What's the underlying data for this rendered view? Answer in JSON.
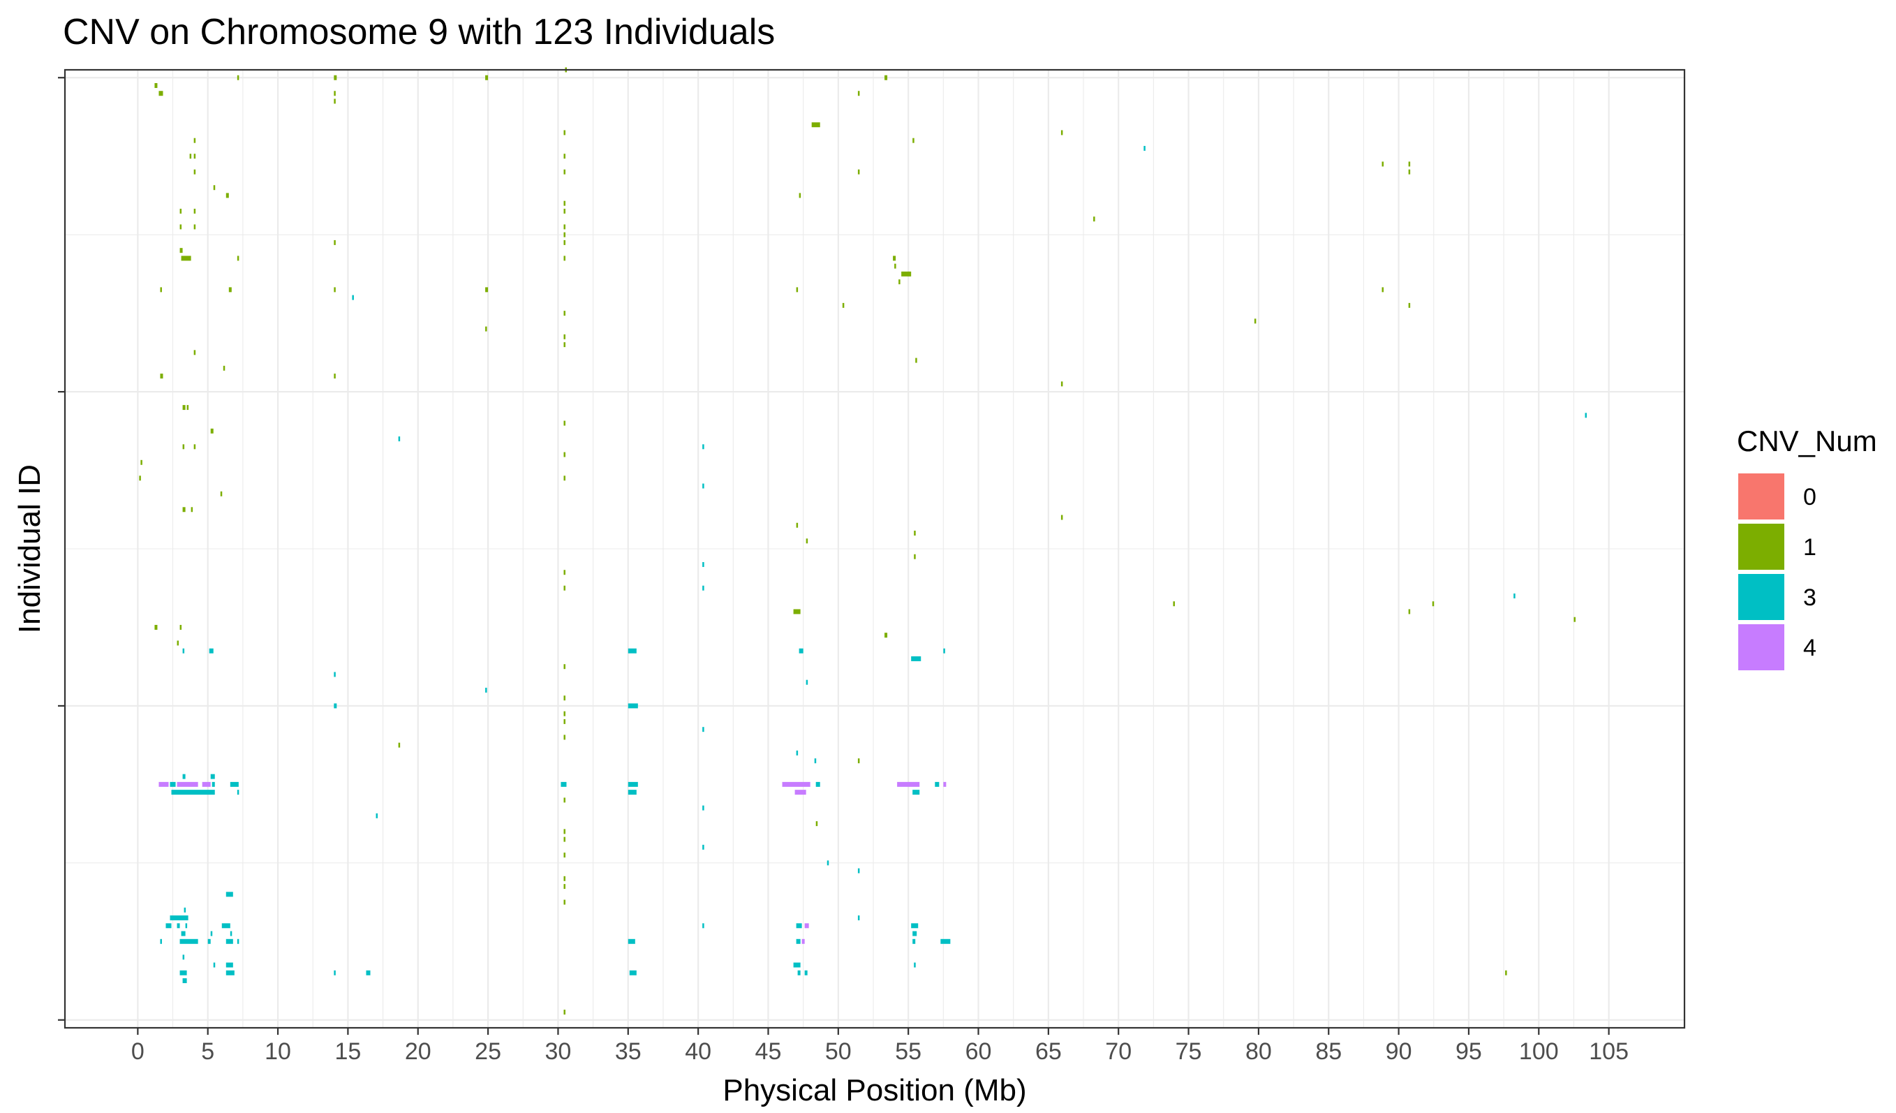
{
  "chart_data": {
    "type": "heatmap",
    "title": "CNV on Chromosome 9 with 123 Individuals",
    "xlabel": "Physical Position (Mb)",
    "ylabel": "Individual ID",
    "xlim": [
      -5.2,
      110.4
    ],
    "ylim": [
      0,
      122
    ],
    "x_ticks": [
      0,
      5,
      10,
      15,
      20,
      25,
      30,
      35,
      40,
      45,
      50,
      55,
      60,
      65,
      70,
      75,
      80,
      85,
      90,
      95,
      100,
      105
    ],
    "x_tick_labels": [
      "0",
      "5",
      "10",
      "15",
      "20",
      "25",
      "30",
      "35",
      "40",
      "45",
      "50",
      "55",
      "60",
      "65",
      "70",
      "75",
      "80",
      "85",
      "90",
      "95",
      "100",
      "105"
    ],
    "y_ticks": [
      1,
      41,
      81,
      121
    ],
    "grid": true,
    "legend": {
      "title": "CNV_Num",
      "position": "right",
      "entries": [
        {
          "label": "0",
          "color": "#F8766D"
        },
        {
          "label": "1",
          "color": "#7CAE00"
        },
        {
          "label": "3",
          "color": "#00BFC4"
        },
        {
          "label": "4",
          "color": "#C77CFF"
        }
      ]
    },
    "segments_note": "each segment: [start_Mb, end_Mb, individual_row, CNV_Num]",
    "segments": [
      [
        1.2,
        1.4,
        120,
        1
      ],
      [
        1.5,
        1.8,
        119,
        1
      ],
      [
        7.1,
        7.2,
        121,
        1
      ],
      [
        14.0,
        14.2,
        121,
        1
      ],
      [
        24.8,
        25.0,
        121,
        1
      ],
      [
        30.5,
        30.6,
        122,
        1
      ],
      [
        53.3,
        53.5,
        121,
        1
      ],
      [
        51.4,
        51.5,
        119,
        1
      ],
      [
        14.0,
        14.1,
        119,
        1
      ],
      [
        14.0,
        14.1,
        118,
        1
      ],
      [
        48.1,
        48.7,
        115,
        1
      ],
      [
        65.9,
        66.0,
        114,
        1
      ],
      [
        55.3,
        55.4,
        113,
        1
      ],
      [
        4.0,
        4.1,
        113,
        1
      ],
      [
        3.7,
        3.8,
        111,
        1
      ],
      [
        4.0,
        4.1,
        111,
        1
      ],
      [
        4.0,
        4.1,
        109,
        1
      ],
      [
        30.4,
        30.5,
        114,
        1
      ],
      [
        30.4,
        30.5,
        111,
        1
      ],
      [
        30.4,
        30.5,
        109,
        1
      ],
      [
        51.4,
        51.5,
        109,
        1
      ],
      [
        71.8,
        71.9,
        112,
        3
      ],
      [
        88.8,
        88.9,
        110,
        1
      ],
      [
        90.7,
        90.8,
        110,
        1
      ],
      [
        90.7,
        90.8,
        109,
        1
      ],
      [
        5.4,
        5.5,
        107,
        1
      ],
      [
        6.3,
        6.5,
        106,
        1
      ],
      [
        47.2,
        47.3,
        106,
        1
      ],
      [
        30.4,
        30.5,
        105,
        1
      ],
      [
        30.4,
        30.5,
        104,
        1
      ],
      [
        3.0,
        3.1,
        104,
        1
      ],
      [
        4.0,
        4.1,
        104,
        1
      ],
      [
        68.2,
        68.3,
        103,
        1
      ],
      [
        3.0,
        3.1,
        102,
        1
      ],
      [
        4.0,
        4.1,
        102,
        1
      ],
      [
        30.4,
        30.5,
        102,
        1
      ],
      [
        30.4,
        30.5,
        101,
        1
      ],
      [
        14.0,
        14.1,
        100,
        1
      ],
      [
        30.4,
        30.5,
        100,
        1
      ],
      [
        3.0,
        3.2,
        99,
        1
      ],
      [
        3.1,
        3.8,
        98,
        1
      ],
      [
        7.1,
        7.2,
        98,
        1
      ],
      [
        30.4,
        30.5,
        98,
        1
      ],
      [
        53.9,
        54.1,
        98,
        1
      ],
      [
        54.0,
        54.1,
        97,
        1
      ],
      [
        54.5,
        55.2,
        96,
        1
      ],
      [
        54.3,
        54.4,
        95,
        1
      ],
      [
        1.6,
        1.7,
        94,
        1
      ],
      [
        6.5,
        6.7,
        94,
        1
      ],
      [
        14.0,
        14.1,
        94,
        1
      ],
      [
        24.8,
        25.0,
        94,
        1
      ],
      [
        47.0,
        47.1,
        94,
        1
      ],
      [
        15.3,
        15.4,
        93,
        3
      ],
      [
        88.8,
        88.9,
        94,
        1
      ],
      [
        50.3,
        50.4,
        92,
        1
      ],
      [
        90.7,
        90.8,
        92,
        1
      ],
      [
        30.4,
        30.5,
        91,
        1
      ],
      [
        79.7,
        79.8,
        90,
        1
      ],
      [
        24.8,
        24.9,
        89,
        1
      ],
      [
        30.4,
        30.5,
        88,
        1
      ],
      [
        30.4,
        30.5,
        87,
        1
      ],
      [
        4.0,
        4.1,
        86,
        1
      ],
      [
        55.5,
        55.6,
        85,
        1
      ],
      [
        6.1,
        6.2,
        84,
        1
      ],
      [
        1.6,
        1.8,
        83,
        1
      ],
      [
        14.0,
        14.1,
        83,
        1
      ],
      [
        65.9,
        66.0,
        82,
        1
      ],
      [
        3.2,
        3.4,
        79,
        1
      ],
      [
        3.5,
        3.6,
        79,
        1
      ],
      [
        5.2,
        5.4,
        76,
        1
      ],
      [
        103.3,
        103.4,
        78,
        3
      ],
      [
        30.4,
        30.5,
        77,
        1
      ],
      [
        18.6,
        18.7,
        75,
        3
      ],
      [
        3.2,
        3.3,
        74,
        1
      ],
      [
        4.0,
        4.1,
        74,
        1
      ],
      [
        40.3,
        40.4,
        74,
        3
      ],
      [
        30.4,
        30.5,
        73,
        1
      ],
      [
        0.2,
        0.3,
        72,
        1
      ],
      [
        30.4,
        30.5,
        70,
        1
      ],
      [
        0.1,
        0.2,
        70,
        1
      ],
      [
        40.3,
        40.4,
        69,
        3
      ],
      [
        5.9,
        6.0,
        68,
        1
      ],
      [
        3.2,
        3.4,
        66,
        1
      ],
      [
        3.8,
        3.9,
        66,
        1
      ],
      [
        65.9,
        66.0,
        65,
        1
      ],
      [
        47.0,
        47.1,
        64,
        1
      ],
      [
        55.4,
        55.5,
        63,
        1
      ],
      [
        47.7,
        47.8,
        62,
        1
      ],
      [
        55.4,
        55.5,
        60,
        1
      ],
      [
        40.3,
        40.4,
        59,
        3
      ],
      [
        30.4,
        30.5,
        58,
        1
      ],
      [
        40.3,
        40.4,
        56,
        3
      ],
      [
        30.4,
        30.5,
        56,
        1
      ],
      [
        73.9,
        74.0,
        54,
        1
      ],
      [
        92.4,
        92.5,
        54,
        1
      ],
      [
        98.2,
        98.3,
        55,
        3
      ],
      [
        46.8,
        47.3,
        53,
        1
      ],
      [
        90.7,
        90.8,
        53,
        1
      ],
      [
        102.5,
        102.6,
        52,
        1
      ],
      [
        1.2,
        1.4,
        51,
        1
      ],
      [
        53.3,
        53.5,
        50,
        1
      ],
      [
        3.0,
        3.1,
        51,
        1
      ],
      [
        2.8,
        2.9,
        49,
        1
      ],
      [
        3.2,
        3.3,
        48,
        3
      ],
      [
        5.1,
        5.4,
        48,
        3
      ],
      [
        35.0,
        35.6,
        48,
        3
      ],
      [
        47.2,
        47.5,
        48,
        3
      ],
      [
        55.2,
        55.9,
        47,
        3
      ],
      [
        57.5,
        57.6,
        48,
        3
      ],
      [
        30.4,
        30.5,
        46,
        1
      ],
      [
        14.0,
        14.1,
        45,
        3
      ],
      [
        47.7,
        47.8,
        44,
        3
      ],
      [
        24.8,
        24.9,
        43,
        3
      ],
      [
        30.4,
        30.5,
        42,
        1
      ],
      [
        14.0,
        14.2,
        41,
        3
      ],
      [
        35.0,
        35.7,
        41,
        3
      ],
      [
        30.4,
        30.5,
        40,
        1
      ],
      [
        30.4,
        30.5,
        39,
        1
      ],
      [
        40.3,
        40.4,
        38,
        3
      ],
      [
        30.4,
        30.5,
        37,
        1
      ],
      [
        18.6,
        18.7,
        36,
        1
      ],
      [
        47.0,
        47.1,
        35,
        3
      ],
      [
        48.3,
        48.4,
        34,
        3
      ],
      [
        51.4,
        51.5,
        34,
        1
      ],
      [
        3.2,
        3.4,
        32,
        3
      ],
      [
        5.2,
        5.5,
        32,
        3
      ],
      [
        1.5,
        2.2,
        31,
        4
      ],
      [
        2.3,
        2.7,
        31,
        3
      ],
      [
        2.8,
        4.3,
        31,
        4
      ],
      [
        4.6,
        5.2,
        31,
        4
      ],
      [
        5.3,
        5.5,
        31,
        3
      ],
      [
        6.6,
        7.2,
        31,
        3
      ],
      [
        30.2,
        30.6,
        31,
        3
      ],
      [
        35.0,
        35.7,
        31,
        3
      ],
      [
        46.0,
        48.0,
        31,
        4
      ],
      [
        48.4,
        48.7,
        31,
        3
      ],
      [
        54.2,
        55.8,
        31,
        4
      ],
      [
        56.9,
        57.2,
        31,
        3
      ],
      [
        57.5,
        57.7,
        31,
        4
      ],
      [
        2.4,
        5.5,
        30,
        3
      ],
      [
        7.1,
        7.2,
        30,
        3
      ],
      [
        30.4,
        30.5,
        29,
        1
      ],
      [
        35.0,
        35.6,
        30,
        3
      ],
      [
        46.9,
        47.7,
        30,
        4
      ],
      [
        55.3,
        55.8,
        30,
        3
      ],
      [
        40.3,
        40.4,
        28,
        3
      ],
      [
        17.0,
        17.1,
        27,
        3
      ],
      [
        48.4,
        48.5,
        26,
        1
      ],
      [
        30.4,
        30.5,
        25,
        1
      ],
      [
        30.4,
        30.5,
        24,
        1
      ],
      [
        40.3,
        40.4,
        23,
        3
      ],
      [
        30.4,
        30.5,
        22,
        1
      ],
      [
        49.2,
        49.3,
        21,
        3
      ],
      [
        51.4,
        51.5,
        20,
        3
      ],
      [
        30.4,
        30.5,
        19,
        1
      ],
      [
        30.4,
        30.5,
        18,
        1
      ],
      [
        6.3,
        6.8,
        17,
        3
      ],
      [
        30.4,
        30.5,
        16,
        1
      ],
      [
        3.3,
        3.4,
        15,
        3
      ],
      [
        2.3,
        3.6,
        14,
        3
      ],
      [
        2.0,
        2.4,
        13,
        3
      ],
      [
        2.8,
        3.0,
        13,
        3
      ],
      [
        3.4,
        3.5,
        13,
        3
      ],
      [
        6.0,
        6.6,
        13,
        3
      ],
      [
        51.4,
        51.5,
        14,
        3
      ],
      [
        40.3,
        40.4,
        13,
        3
      ],
      [
        47.0,
        47.4,
        13,
        3
      ],
      [
        47.6,
        47.9,
        13,
        4
      ],
      [
        55.2,
        55.7,
        13,
        3
      ],
      [
        3.1,
        3.4,
        12,
        3
      ],
      [
        5.2,
        5.3,
        12,
        3
      ],
      [
        6.6,
        6.7,
        12,
        3
      ],
      [
        55.3,
        55.6,
        12,
        3
      ],
      [
        1.6,
        1.7,
        11,
        3
      ],
      [
        3.0,
        4.3,
        11,
        3
      ],
      [
        5.0,
        5.2,
        11,
        3
      ],
      [
        6.3,
        6.8,
        11,
        3
      ],
      [
        7.1,
        7.2,
        11,
        3
      ],
      [
        35.0,
        35.5,
        11,
        3
      ],
      [
        47.0,
        47.3,
        11,
        3
      ],
      [
        47.4,
        47.6,
        11,
        4
      ],
      [
        55.3,
        55.5,
        11,
        3
      ],
      [
        57.3,
        58.0,
        11,
        3
      ],
      [
        3.2,
        3.3,
        9,
        3
      ],
      [
        5.4,
        5.5,
        8,
        3
      ],
      [
        6.3,
        6.8,
        8,
        3
      ],
      [
        46.8,
        47.3,
        8,
        3
      ],
      [
        55.4,
        55.5,
        8,
        3
      ],
      [
        3.0,
        3.5,
        7,
        3
      ],
      [
        6.3,
        6.9,
        7,
        3
      ],
      [
        14.0,
        14.1,
        7,
        3
      ],
      [
        16.3,
        16.6,
        7,
        3
      ],
      [
        35.1,
        35.6,
        7,
        3
      ],
      [
        47.1,
        47.3,
        7,
        3
      ],
      [
        47.6,
        47.8,
        7,
        3
      ],
      [
        97.6,
        97.7,
        7,
        1
      ],
      [
        3.2,
        3.5,
        6,
        3
      ],
      [
        30.4,
        30.5,
        2,
        1
      ]
    ]
  }
}
